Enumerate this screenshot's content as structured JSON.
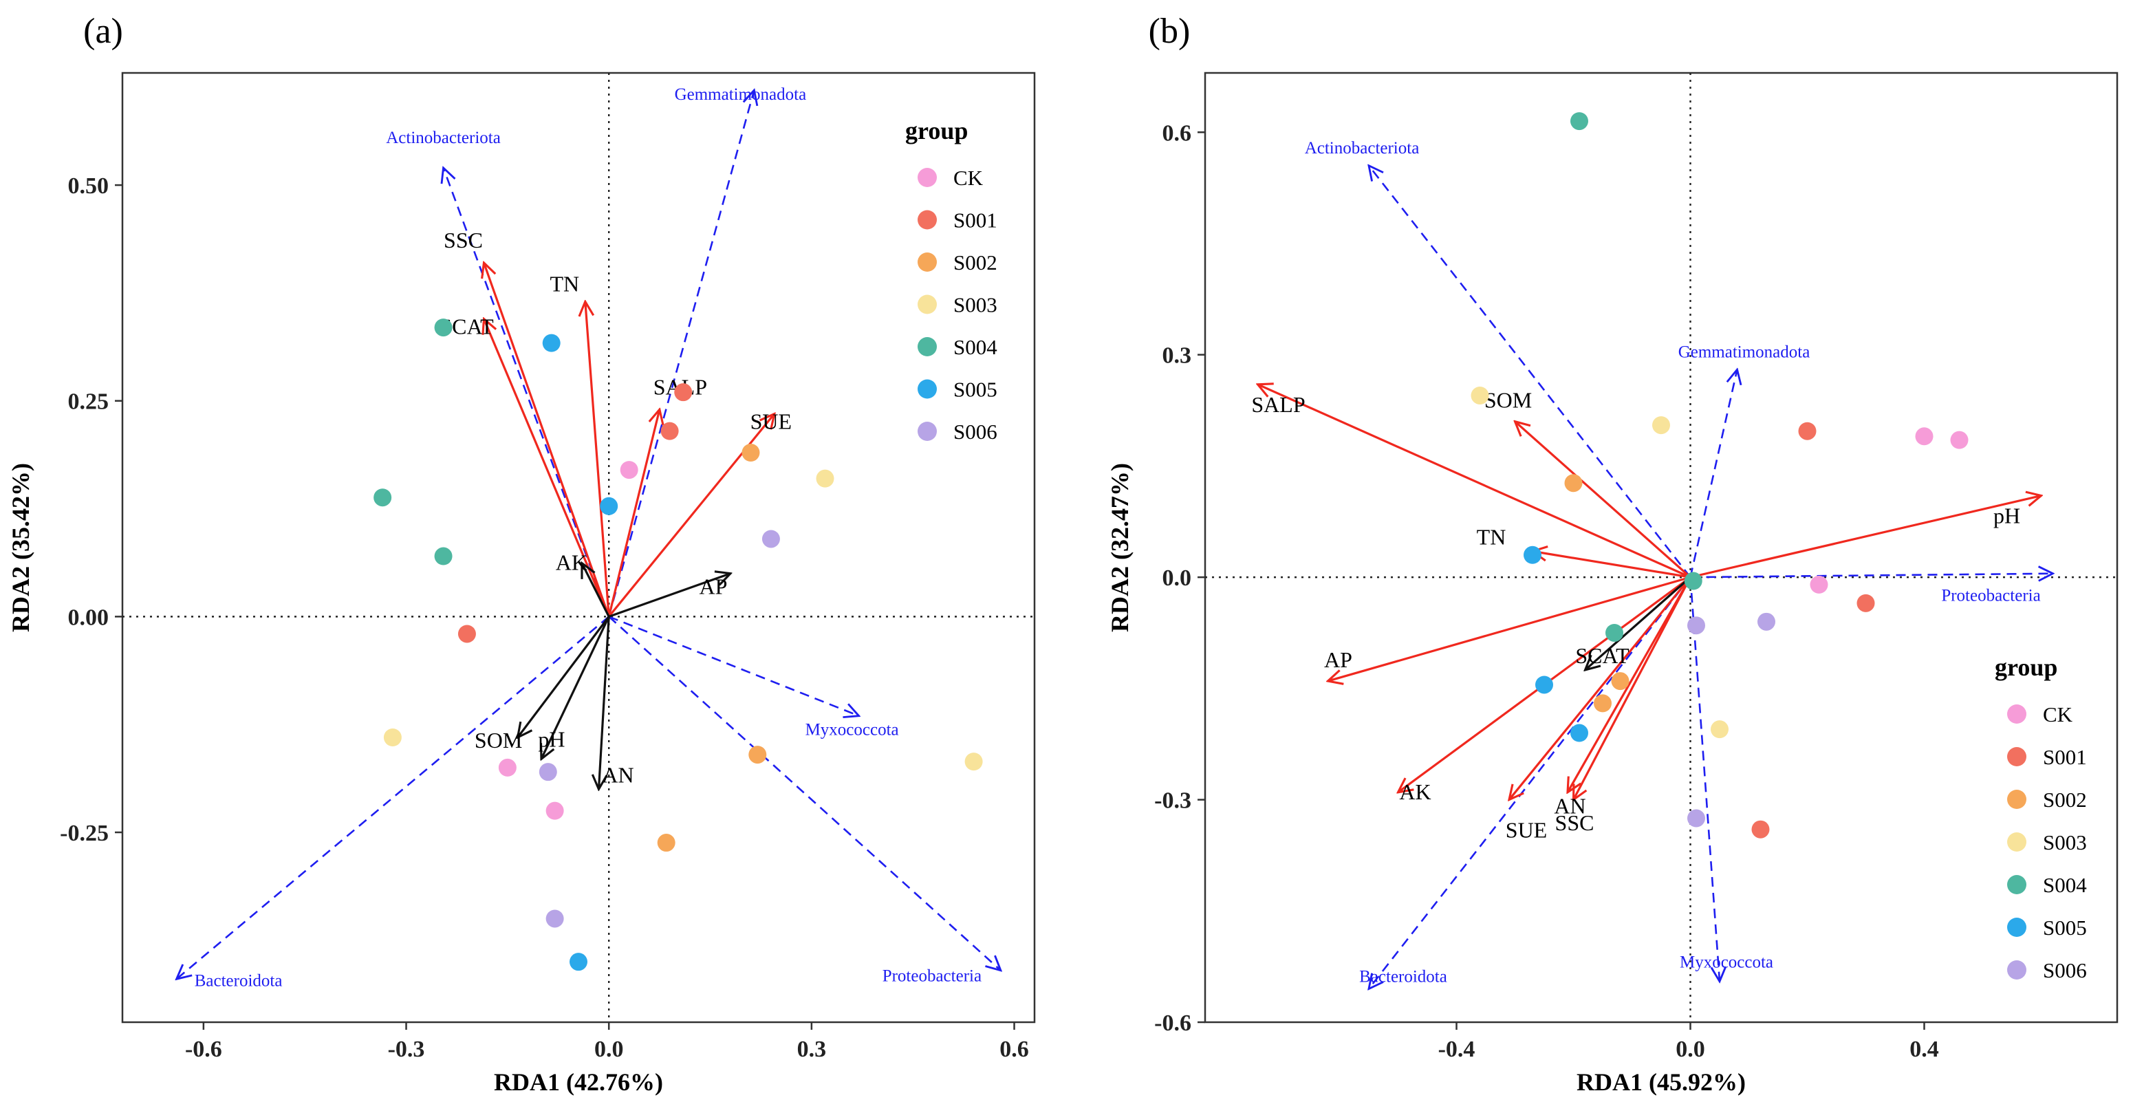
{
  "chart_data": [
    {
      "panel_label": "(a)",
      "type": "scatter",
      "xlabel": "RDA1 (42.76%)",
      "ylabel": "RDA2 (35.42%)",
      "xlim": [
        -0.72,
        0.63
      ],
      "ylim": [
        -0.47,
        0.63
      ],
      "xticks": [
        -0.6,
        -0.3,
        0.0,
        0.3,
        0.6
      ],
      "xtick_labels": [
        "-0.6",
        "-0.3",
        "0.0",
        "0.3",
        "0.6"
      ],
      "yticks": [
        -0.25,
        0.0,
        0.25,
        0.5
      ],
      "ytick_labels": [
        "-0.25",
        "0.00",
        "0.25",
        "0.50"
      ],
      "legend": {
        "title": "group",
        "position": "top-right"
      },
      "points": [
        {
          "group": "CK",
          "x": 0.03,
          "y": 0.17
        },
        {
          "group": "CK",
          "x": -0.15,
          "y": -0.175
        },
        {
          "group": "CK",
          "x": -0.08,
          "y": -0.225
        },
        {
          "group": "S001",
          "x": 0.11,
          "y": 0.26
        },
        {
          "group": "S001",
          "x": 0.09,
          "y": 0.215
        },
        {
          "group": "S001",
          "x": -0.21,
          "y": -0.02
        },
        {
          "group": "S002",
          "x": 0.21,
          "y": 0.19
        },
        {
          "group": "S002",
          "x": 0.22,
          "y": -0.16
        },
        {
          "group": "S002",
          "x": 0.085,
          "y": -0.262
        },
        {
          "group": "S003",
          "x": 0.32,
          "y": 0.16
        },
        {
          "group": "S003",
          "x": -0.32,
          "y": -0.14
        },
        {
          "group": "S003",
          "x": 0.54,
          "y": -0.168
        },
        {
          "group": "S004",
          "x": -0.245,
          "y": 0.335
        },
        {
          "group": "S004",
          "x": -0.335,
          "y": 0.138
        },
        {
          "group": "S004",
          "x": -0.245,
          "y": 0.07
        },
        {
          "group": "S005",
          "x": -0.085,
          "y": 0.317
        },
        {
          "group": "S005",
          "x": 0.0,
          "y": 0.128
        },
        {
          "group": "S005",
          "x": -0.045,
          "y": -0.4
        },
        {
          "group": "S006",
          "x": 0.24,
          "y": 0.09
        },
        {
          "group": "S006",
          "x": -0.09,
          "y": -0.18
        },
        {
          "group": "S006",
          "x": -0.08,
          "y": -0.35
        }
      ],
      "env_arrows": [
        {
          "label": "SSC",
          "x": -0.185,
          "y": 0.41,
          "color": "red"
        },
        {
          "label": "SCAT",
          "x": -0.185,
          "y": 0.345,
          "color": "red"
        },
        {
          "label": "TN",
          "x": -0.035,
          "y": 0.365,
          "color": "red"
        },
        {
          "label": "SALP",
          "x": 0.075,
          "y": 0.24,
          "color": "red"
        },
        {
          "label": "SUE",
          "x": 0.245,
          "y": 0.235,
          "color": "red"
        },
        {
          "label": "AK",
          "x": -0.04,
          "y": 0.062,
          "color": "black"
        },
        {
          "label": "AP",
          "x": 0.18,
          "y": 0.05,
          "color": "black"
        },
        {
          "label": "SOM",
          "x": -0.135,
          "y": -0.14,
          "color": "black"
        },
        {
          "label": "pH",
          "x": -0.1,
          "y": -0.165,
          "color": "black"
        },
        {
          "label": "AN",
          "x": -0.015,
          "y": -0.2,
          "color": "black"
        }
      ],
      "taxa_arrows": [
        {
          "label": "Actinobacteriota",
          "x": -0.245,
          "y": 0.52
        },
        {
          "label": "Gemmatimonadota",
          "x": 0.215,
          "y": 0.61
        },
        {
          "label": "Myxococcota",
          "x": 0.37,
          "y": -0.115
        },
        {
          "label": "Proteobacteria",
          "x": 0.58,
          "y": -0.41
        },
        {
          "label": "Bacteroidota",
          "x": -0.64,
          "y": -0.42
        }
      ]
    },
    {
      "panel_label": "(b)",
      "type": "scatter",
      "xlabel": "RDA1 (45.92%)",
      "ylabel": "RDA2 (32.47%)",
      "xlim": [
        -0.83,
        0.73
      ],
      "ylim": [
        -0.6,
        0.68
      ],
      "xticks": [
        -0.4,
        0.0,
        0.4
      ],
      "xtick_labels": [
        "-0.4",
        "0.0",
        "0.4"
      ],
      "yticks": [
        -0.6,
        -0.3,
        0.0,
        0.3,
        0.6
      ],
      "ytick_labels": [
        "-0.6",
        "-0.3",
        "0.0",
        "0.3",
        "0.6"
      ],
      "legend": {
        "title": "group",
        "position": "bottom-right"
      },
      "points": [
        {
          "group": "CK",
          "x": 0.4,
          "y": 0.19
        },
        {
          "group": "CK",
          "x": 0.46,
          "y": 0.185
        },
        {
          "group": "CK",
          "x": 0.22,
          "y": -0.01
        },
        {
          "group": "S001",
          "x": 0.2,
          "y": 0.197
        },
        {
          "group": "S001",
          "x": 0.3,
          "y": -0.035
        },
        {
          "group": "S001",
          "x": 0.12,
          "y": -0.34
        },
        {
          "group": "S002",
          "x": -0.2,
          "y": 0.127
        },
        {
          "group": "S002",
          "x": -0.12,
          "y": -0.14
        },
        {
          "group": "S002",
          "x": -0.15,
          "y": -0.17
        },
        {
          "group": "S003",
          "x": -0.36,
          "y": 0.245
        },
        {
          "group": "S003",
          "x": -0.05,
          "y": 0.205
        },
        {
          "group": "S003",
          "x": 0.05,
          "y": -0.205
        },
        {
          "group": "S004",
          "x": -0.19,
          "y": 0.615
        },
        {
          "group": "S004",
          "x": -0.13,
          "y": -0.075
        },
        {
          "group": "S004",
          "x": 0.005,
          "y": -0.005
        },
        {
          "group": "S005",
          "x": -0.27,
          "y": 0.03
        },
        {
          "group": "S005",
          "x": -0.25,
          "y": -0.145
        },
        {
          "group": "S005",
          "x": -0.19,
          "y": -0.21
        },
        {
          "group": "S006",
          "x": 0.01,
          "y": -0.065
        },
        {
          "group": "S006",
          "x": 0.13,
          "y": -0.06
        },
        {
          "group": "S006",
          "x": 0.01,
          "y": -0.325
        }
      ],
      "env_arrows": [
        {
          "label": "SALP",
          "x": -0.74,
          "y": 0.26,
          "color": "red"
        },
        {
          "label": "SOM",
          "x": -0.3,
          "y": 0.21,
          "color": "red"
        },
        {
          "label": "pH",
          "x": 0.6,
          "y": 0.11,
          "color": "red"
        },
        {
          "label": "TN",
          "x": -0.27,
          "y": 0.035,
          "color": "red"
        },
        {
          "label": "AP",
          "x": -0.62,
          "y": -0.14,
          "color": "red"
        },
        {
          "label": "AK",
          "x": -0.5,
          "y": -0.29,
          "color": "red"
        },
        {
          "label": "SUE",
          "x": -0.31,
          "y": -0.3,
          "color": "red"
        },
        {
          "label": "SSC",
          "x": -0.21,
          "y": -0.29,
          "color": "red"
        },
        {
          "label": "AN",
          "x": -0.2,
          "y": -0.3,
          "color": "red"
        },
        {
          "label": "SCAT",
          "x": -0.18,
          "y": -0.125,
          "color": "black"
        }
      ],
      "taxa_arrows": [
        {
          "label": "Actinobacteriota",
          "x": -0.55,
          "y": 0.555
        },
        {
          "label": "Gemmatimonadota",
          "x": 0.08,
          "y": 0.28
        },
        {
          "label": "Proteobacteria",
          "x": 0.62,
          "y": 0.005
        },
        {
          "label": "Bacteroidota",
          "x": -0.55,
          "y": -0.555
        },
        {
          "label": "Myxococcota",
          "x": 0.05,
          "y": -0.545
        }
      ]
    }
  ],
  "groups": [
    "CK",
    "S001",
    "S002",
    "S003",
    "S004",
    "S005",
    "S006"
  ],
  "group_colors": {
    "CK": "#F69CD8",
    "S001": "#F2705F",
    "S002": "#F6A758",
    "S003": "#F8E39A",
    "S004": "#4EB7A0",
    "S005": "#2BA9EA",
    "S006": "#B7A4E6"
  },
  "arrow_colors": {
    "red": "#F0281E",
    "black": "#111111",
    "taxa": "#1E1EF0"
  }
}
